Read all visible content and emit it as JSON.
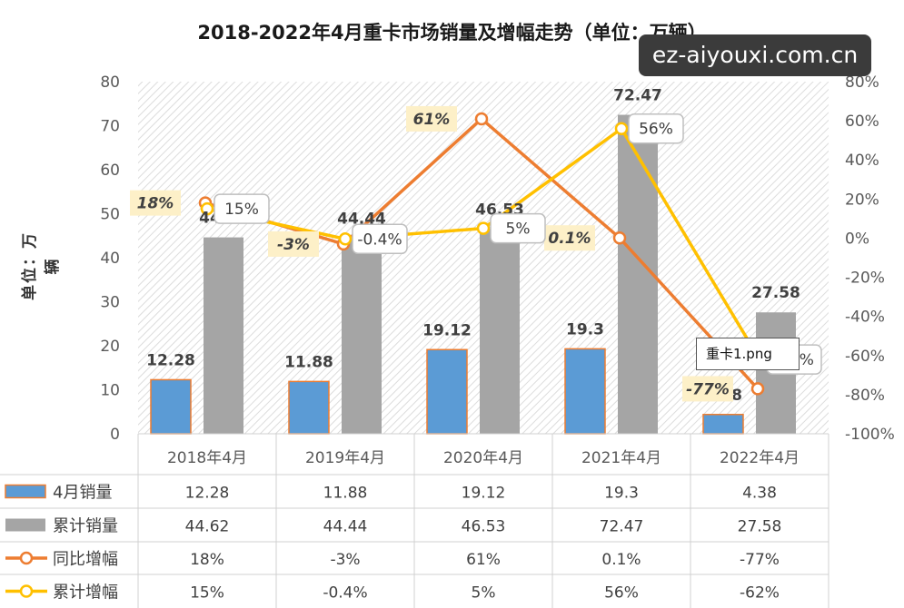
{
  "title": "2018-2022年4月重卡市场销量及增幅走势（单位：万辆）",
  "ylabel": "单位：万辆",
  "watermark": "ez-aiyouxi.com.cn",
  "tooltip": "重卡1.png",
  "chart_data": {
    "type": "bar",
    "categories": [
      "2018年4月",
      "2019年4月",
      "2020年4月",
      "2021年4月",
      "2022年4月"
    ],
    "series": [
      {
        "name": "4月销量",
        "type": "bar",
        "axis": "left",
        "values": [
          12.28,
          11.88,
          19.12,
          19.3,
          4.38
        ],
        "color": "#5b9bd5",
        "display": [
          "12.28",
          "11.88",
          "19.12",
          "19.3",
          "4.38"
        ]
      },
      {
        "name": "累计销量",
        "type": "bar",
        "axis": "left",
        "values": [
          44.62,
          44.44,
          46.53,
          72.47,
          27.58
        ],
        "color": "#a5a5a5",
        "display": [
          "44.62",
          "44.44",
          "46.53",
          "72.47",
          "27.58"
        ]
      },
      {
        "name": "同比增幅",
        "type": "line",
        "axis": "right",
        "values": [
          18,
          -3,
          61,
          0.1,
          -77
        ],
        "color": "#ed7d31",
        "display": [
          "18%",
          "-3%",
          "61%",
          "0.1%",
          "-77%"
        ]
      },
      {
        "name": "累计增幅",
        "type": "line",
        "axis": "right",
        "values": [
          15,
          -0.4,
          5,
          56,
          -62
        ],
        "color": "#ffc000",
        "display": [
          "15%",
          "-0.4%",
          "5%",
          "56%",
          "-62%"
        ]
      }
    ],
    "ylim": [
      0,
      80
    ],
    "yticks": [
      "0",
      "10",
      "20",
      "30",
      "40",
      "50",
      "60",
      "70",
      "80"
    ],
    "y2lim": [
      -100,
      80
    ],
    "y2ticks": [
      "-100%",
      "-80%",
      "-60%",
      "-40%",
      "-20%",
      "0%",
      "20%",
      "40%",
      "60%",
      "80%"
    ],
    "legend": "data-table"
  }
}
